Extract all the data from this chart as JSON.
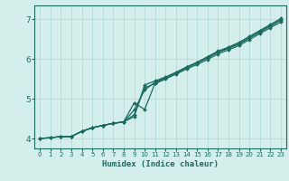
{
  "title": "",
  "xlabel": "Humidex (Indice chaleur)",
  "bg_color": "#d4eeeb",
  "line_color": "#1a6b60",
  "grid_color": "#b8ddd8",
  "xlim": [
    -0.5,
    23.5
  ],
  "ylim": [
    3.75,
    7.35
  ],
  "yticks": [
    4,
    5,
    6,
    7
  ],
  "xticks": [
    0,
    1,
    2,
    3,
    4,
    5,
    6,
    7,
    8,
    9,
    10,
    11,
    12,
    13,
    14,
    15,
    16,
    17,
    18,
    19,
    20,
    21,
    22,
    23
  ],
  "lines": [
    {
      "x": [
        0,
        1,
        2,
        3,
        4,
        5,
        6,
        7,
        8,
        9,
        10,
        11,
        12,
        13,
        14,
        15,
        16,
        17,
        18,
        19,
        20,
        21,
        22,
        23
      ],
      "y": [
        4.0,
        4.02,
        4.05,
        4.05,
        4.18,
        4.27,
        4.33,
        4.38,
        4.42,
        4.6,
        5.28,
        5.38,
        5.5,
        5.62,
        5.75,
        5.86,
        5.99,
        6.13,
        6.23,
        6.34,
        6.49,
        6.64,
        6.79,
        6.93
      ]
    },
    {
      "x": [
        0,
        1,
        2,
        3,
        4,
        5,
        6,
        7,
        8,
        9,
        10,
        11,
        12,
        13,
        14,
        15,
        16,
        17,
        18,
        19,
        20,
        21,
        22,
        23
      ],
      "y": [
        4.0,
        4.02,
        4.05,
        4.05,
        4.18,
        4.27,
        4.33,
        4.38,
        4.42,
        4.72,
        5.22,
        5.42,
        5.53,
        5.65,
        5.78,
        5.9,
        6.03,
        6.17,
        6.27,
        6.38,
        6.53,
        6.68,
        6.83,
        6.98
      ]
    },
    {
      "x": [
        0,
        1,
        2,
        3,
        4,
        5,
        6,
        7,
        8,
        9,
        10,
        11,
        12,
        13,
        14,
        15,
        16,
        17,
        18,
        19,
        20,
        21,
        22,
        23
      ],
      "y": [
        4.0,
        4.02,
        4.05,
        4.05,
        4.18,
        4.27,
        4.33,
        4.38,
        4.42,
        4.55,
        5.35,
        5.45,
        5.55,
        5.67,
        5.8,
        5.91,
        6.04,
        6.18,
        6.28,
        6.39,
        6.54,
        6.69,
        6.84,
        6.99
      ]
    },
    {
      "x": [
        2,
        3,
        4,
        5,
        6,
        7,
        8,
        9,
        10,
        11,
        12,
        13,
        14,
        15,
        16,
        17,
        18,
        19,
        20,
        21,
        22,
        23
      ],
      "y": [
        4.05,
        4.05,
        4.18,
        4.27,
        4.33,
        4.38,
        4.42,
        4.9,
        4.73,
        5.4,
        5.52,
        5.65,
        5.8,
        5.92,
        6.06,
        6.2,
        6.3,
        6.42,
        6.57,
        6.72,
        6.87,
        7.02
      ]
    }
  ]
}
